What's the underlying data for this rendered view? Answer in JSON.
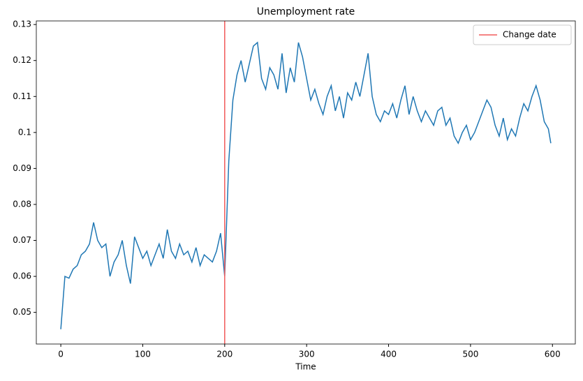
{
  "chart_data": {
    "type": "line",
    "title": "Unemployment rate",
    "xlabel": "Time",
    "x": [
      0,
      5,
      10,
      15,
      20,
      25,
      30,
      35,
      40,
      45,
      50,
      55,
      60,
      65,
      70,
      75,
      80,
      85,
      90,
      95,
      100,
      105,
      110,
      115,
      120,
      125,
      130,
      135,
      140,
      145,
      150,
      155,
      160,
      165,
      170,
      175,
      180,
      185,
      190,
      195,
      200,
      205,
      210,
      215,
      220,
      225,
      230,
      235,
      240,
      245,
      250,
      255,
      260,
      265,
      270,
      275,
      280,
      285,
      290,
      295,
      300,
      305,
      310,
      315,
      320,
      325,
      330,
      335,
      340,
      345,
      350,
      355,
      360,
      365,
      370,
      375,
      380,
      385,
      390,
      395,
      400,
      405,
      410,
      415,
      420,
      425,
      430,
      435,
      440,
      445,
      450,
      455,
      460,
      465,
      470,
      475,
      480,
      485,
      490,
      495,
      500,
      505,
      510,
      515,
      520,
      525,
      530,
      535,
      540,
      545,
      550,
      555,
      560,
      565,
      570,
      575,
      580,
      585,
      590,
      595,
      598
    ],
    "series": [
      {
        "name": "Unemployment rate",
        "color": "#1f77b4",
        "values": [
          0.0453,
          0.06,
          0.0595,
          0.062,
          0.063,
          0.066,
          0.067,
          0.069,
          0.075,
          0.07,
          0.068,
          0.069,
          0.06,
          0.064,
          0.066,
          0.07,
          0.063,
          0.058,
          0.071,
          0.068,
          0.065,
          0.067,
          0.063,
          0.066,
          0.069,
          0.065,
          0.073,
          0.067,
          0.065,
          0.069,
          0.066,
          0.067,
          0.064,
          0.068,
          0.063,
          0.066,
          0.065,
          0.064,
          0.067,
          0.072,
          0.06,
          0.092,
          0.109,
          0.116,
          0.12,
          0.114,
          0.119,
          0.124,
          0.125,
          0.115,
          0.112,
          0.118,
          0.116,
          0.112,
          0.122,
          0.111,
          0.118,
          0.114,
          0.125,
          0.121,
          0.115,
          0.109,
          0.112,
          0.108,
          0.105,
          0.11,
          0.113,
          0.106,
          0.11,
          0.104,
          0.111,
          0.109,
          0.114,
          0.11,
          0.116,
          0.122,
          0.11,
          0.105,
          0.103,
          0.106,
          0.105,
          0.108,
          0.104,
          0.109,
          0.113,
          0.105,
          0.11,
          0.106,
          0.103,
          0.106,
          0.104,
          0.102,
          0.106,
          0.107,
          0.102,
          0.104,
          0.099,
          0.097,
          0.1,
          0.102,
          0.098,
          0.1,
          0.103,
          0.106,
          0.109,
          0.107,
          0.102,
          0.099,
          0.104,
          0.098,
          0.101,
          0.099,
          0.104,
          0.108,
          0.106,
          0.11,
          0.113,
          0.109,
          0.103,
          0.101,
          0.097
        ]
      }
    ],
    "vline": {
      "x": 200,
      "name": "Change date",
      "color": "#f25a5a"
    },
    "legend": "upper right",
    "xlim": [
      -29.9,
      627.9
    ],
    "xticks": [
      0,
      100,
      200,
      300,
      400,
      500,
      600
    ],
    "ylim": [
      0.0412,
      0.131
    ],
    "yticks": [
      0.05,
      0.06,
      0.07,
      0.08,
      0.09,
      0.1,
      0.11,
      0.12,
      0.13
    ]
  }
}
